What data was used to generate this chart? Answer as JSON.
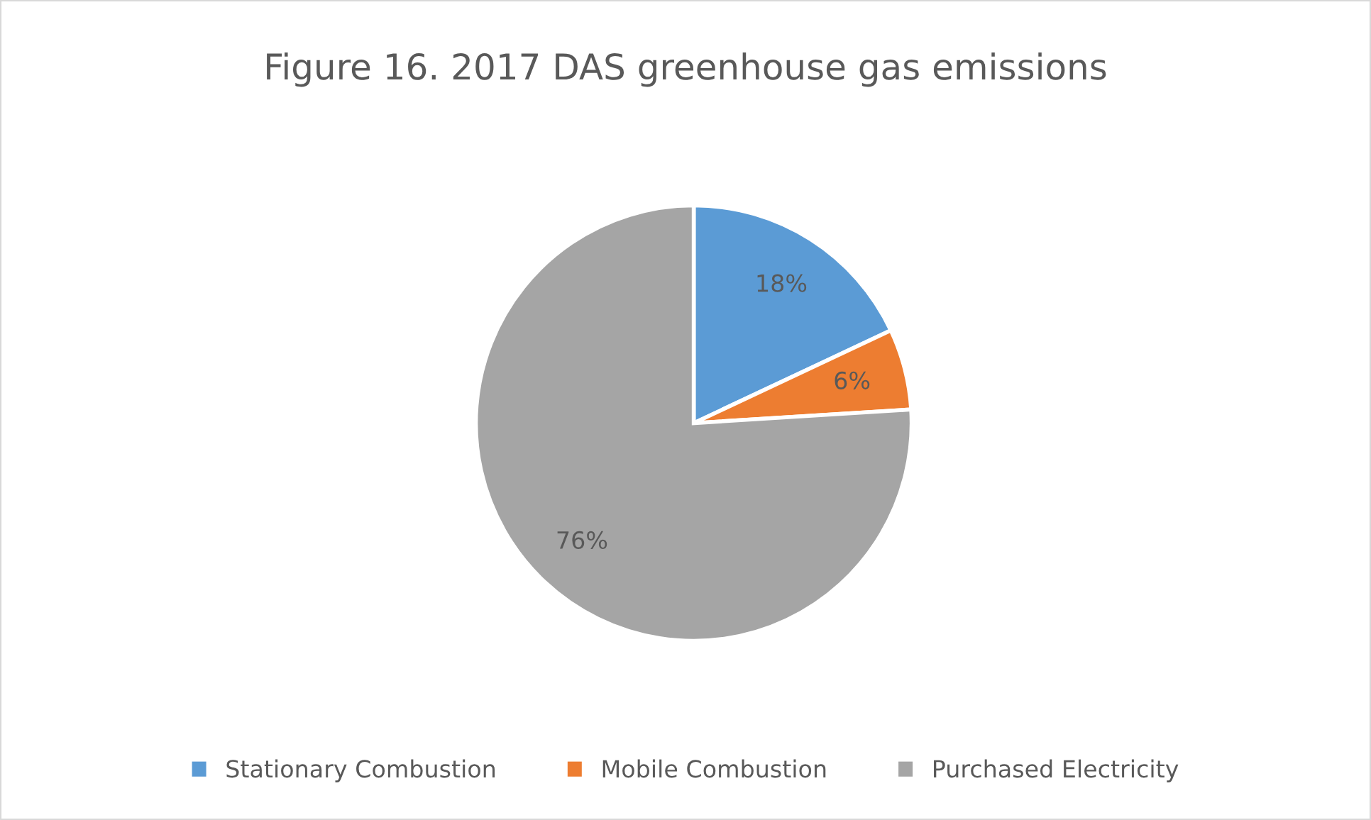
{
  "chart_data": {
    "type": "pie",
    "title": "Figure 16. 2017 DAS greenhouse gas emissions",
    "categories": [
      "Stationary Combustion",
      "Mobile Combustion",
      "Purchased Electricity"
    ],
    "values": [
      18,
      6,
      76
    ],
    "colors": [
      "#5b9bd5",
      "#ed7d31",
      "#a5a5a5"
    ],
    "value_labels": [
      "18%",
      "6%",
      "76%"
    ],
    "legend": "bottom"
  }
}
